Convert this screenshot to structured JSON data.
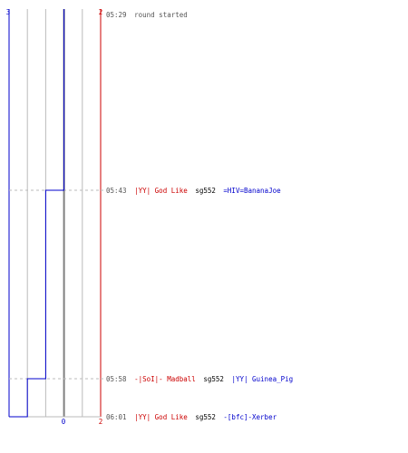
{
  "chart_data": {
    "type": "line",
    "team_a_color": "#0000cc",
    "team_b_color": "#cc0000",
    "neutral_color": "#000000",
    "time_color": "#555555",
    "grid_color": "#bbbbbb",
    "xlim": [
      0,
      5
    ],
    "x_tick_labels": {
      "left": "3",
      "right": "2",
      "bottom_center": "0",
      "bottom_right": "2"
    },
    "series": [
      {
        "x": [
          3,
          2,
          1,
          0
        ]
      }
    ],
    "events": [
      {
        "time": "05:29",
        "text": "round started"
      },
      {
        "time": "05:43",
        "killer": "|YY| God Like",
        "killer_team": "b",
        "weapon": "sg552",
        "victim": "=HIV=BananaJoe",
        "victim_team": "a"
      },
      {
        "time": "05:58",
        "killer": "-|SoI|- Madball",
        "killer_team": "b",
        "weapon": "sg552",
        "victim": "|YY| Guinea_Pig",
        "victim_team": "a"
      },
      {
        "time": "06:01",
        "killer": "|YY| God Like",
        "killer_team": "b",
        "weapon": "sg552",
        "victim": "-[bfc]-Xerber",
        "victim_team": "a"
      }
    ]
  }
}
